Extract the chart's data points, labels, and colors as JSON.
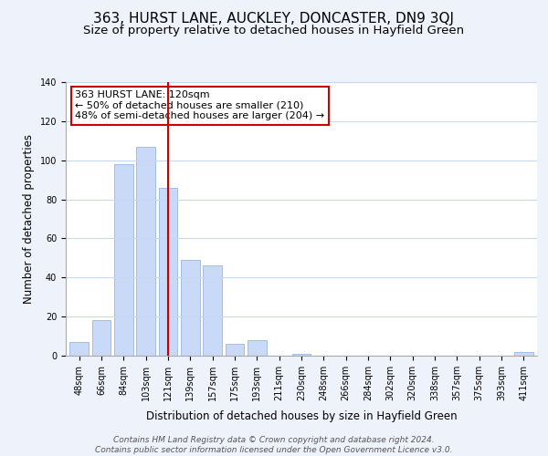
{
  "title": "363, HURST LANE, AUCKLEY, DONCASTER, DN9 3QJ",
  "subtitle": "Size of property relative to detached houses in Hayfield Green",
  "xlabel": "Distribution of detached houses by size in Hayfield Green",
  "ylabel": "Number of detached properties",
  "bar_labels": [
    "48sqm",
    "66sqm",
    "84sqm",
    "103sqm",
    "121sqm",
    "139sqm",
    "157sqm",
    "175sqm",
    "193sqm",
    "211sqm",
    "230sqm",
    "248sqm",
    "266sqm",
    "284sqm",
    "302sqm",
    "320sqm",
    "338sqm",
    "357sqm",
    "375sqm",
    "393sqm",
    "411sqm"
  ],
  "bar_values": [
    7,
    18,
    98,
    107,
    86,
    49,
    46,
    6,
    8,
    0,
    1,
    0,
    0,
    0,
    0,
    0,
    0,
    0,
    0,
    0,
    2
  ],
  "bar_color": "#c9daf8",
  "bar_edge_color": "#a4bde6",
  "vline_x_index": 4,
  "vline_color": "#cc0000",
  "annotation_text": "363 HURST LANE: 120sqm\n← 50% of detached houses are smaller (210)\n48% of semi-detached houses are larger (204) →",
  "annotation_box_color": "#ffffff",
  "annotation_box_edge": "#cc0000",
  "ylim": [
    0,
    140
  ],
  "yticks": [
    0,
    20,
    40,
    60,
    80,
    100,
    120,
    140
  ],
  "footer_line1": "Contains HM Land Registry data © Crown copyright and database right 2024.",
  "footer_line2": "Contains public sector information licensed under the Open Government Licence v3.0.",
  "bg_color": "#eef2fb",
  "plot_bg_color": "#ffffff",
  "title_fontsize": 11,
  "subtitle_fontsize": 9.5,
  "axis_label_fontsize": 8.5,
  "tick_fontsize": 7,
  "annotation_fontsize": 8,
  "footer_fontsize": 6.5
}
